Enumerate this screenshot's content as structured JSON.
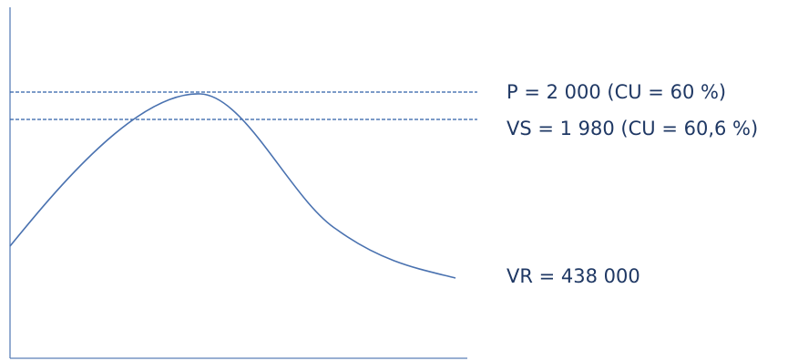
{
  "labels": {
    "p": "P = 2 000  (CU = 60 %)",
    "vs": "VS = 1 980  (CU = 60,6 %)",
    "vr": "VR = 438 000"
  },
  "colors": {
    "axis": "#5b7fb8",
    "curve": "#4a72b0",
    "dashed": "#2e5fa8",
    "text": "#1f3864"
  }
}
